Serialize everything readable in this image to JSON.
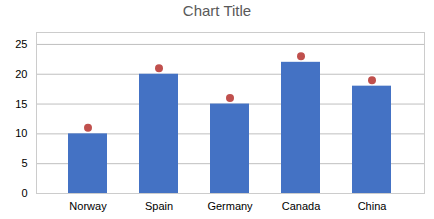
{
  "chart_data": {
    "type": "bar",
    "title": "Chart Title",
    "categories": [
      "Norway",
      "Spain",
      "Germany",
      "Canada",
      "China"
    ],
    "series": [
      {
        "type": "bar",
        "color": "#4472C4",
        "values": [
          10,
          20,
          15,
          22,
          18
        ]
      },
      {
        "type": "scatter",
        "marker": "circle",
        "color": "#C0504D",
        "values": [
          10,
          20,
          15,
          22,
          18
        ]
      }
    ],
    "ylim": [
      0,
      27
    ],
    "yticks": [
      0,
      5,
      10,
      15,
      20,
      25
    ],
    "grid": true
  }
}
